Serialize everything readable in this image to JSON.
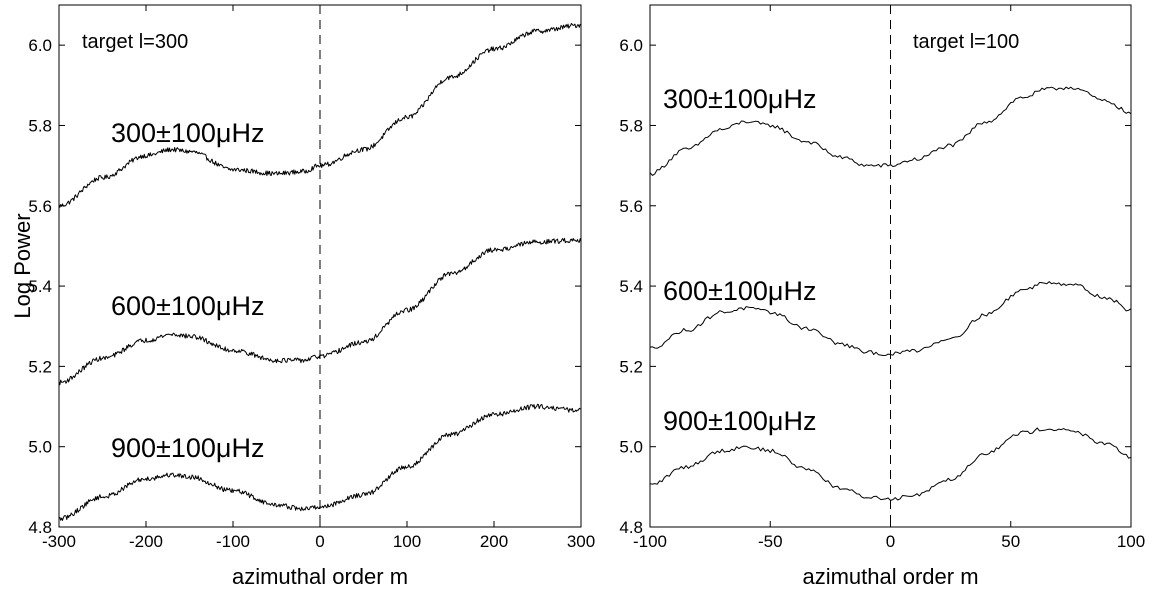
{
  "chart_data": [
    {
      "type": "line",
      "title": "target l=300",
      "xlabel": "azimuthal order m",
      "ylabel": "Log Power",
      "xlim": [
        -300,
        300
      ],
      "ylim": [
        4.8,
        6.1
      ],
      "xticks": [
        -300,
        -200,
        -100,
        0,
        100,
        200,
        300
      ],
      "yticks": [
        4.8,
        5.0,
        5.2,
        5.4,
        5.6,
        5.8,
        6.0
      ],
      "xtick_labels": [
        "-300",
        "-200",
        "-100",
        "0",
        "100",
        "200",
        "300"
      ],
      "ytick_labels": [
        "4.8",
        "5.0",
        "5.2",
        "5.4",
        "5.6",
        "5.8",
        "6.0"
      ],
      "reference_line": {
        "x": 0,
        "style": "dashed"
      },
      "series": [
        {
          "name": "300±100μHz",
          "x": [
            -300,
            -250,
            -200,
            -170,
            -150,
            -100,
            -50,
            -20,
            0,
            50,
            100,
            150,
            200,
            250,
            300
          ],
          "y": [
            5.6,
            5.67,
            5.725,
            5.74,
            5.735,
            5.69,
            5.68,
            5.685,
            5.7,
            5.74,
            5.82,
            5.92,
            5.99,
            6.035,
            6.05
          ]
        },
        {
          "name": "600±100μHz",
          "x": [
            -300,
            -250,
            -200,
            -170,
            -150,
            -100,
            -50,
            -20,
            0,
            50,
            100,
            150,
            200,
            250,
            300
          ],
          "y": [
            5.16,
            5.22,
            5.265,
            5.28,
            5.275,
            5.24,
            5.215,
            5.215,
            5.225,
            5.26,
            5.34,
            5.43,
            5.49,
            5.51,
            5.515
          ]
        },
        {
          "name": "900±100μHz",
          "x": [
            -300,
            -250,
            -200,
            -170,
            -150,
            -100,
            -50,
            -20,
            0,
            50,
            100,
            150,
            200,
            250,
            300
          ],
          "y": [
            4.82,
            4.875,
            4.92,
            4.93,
            4.925,
            4.89,
            4.855,
            4.845,
            4.85,
            4.88,
            4.95,
            5.03,
            5.08,
            5.1,
            5.09
          ]
        }
      ]
    },
    {
      "type": "line",
      "title": "target l=100",
      "xlabel": "azimuthal order m",
      "ylabel": "",
      "xlim": [
        -100,
        100
      ],
      "ylim": [
        4.8,
        6.1
      ],
      "xticks": [
        -100,
        -50,
        0,
        50,
        100
      ],
      "yticks": [
        4.8,
        5.0,
        5.2,
        5.4,
        5.6,
        5.8,
        6.0
      ],
      "xtick_labels": [
        "-100",
        "-50",
        "0",
        "50",
        "100"
      ],
      "ytick_labels": [
        "4.8",
        "5.0",
        "5.2",
        "5.4",
        "5.6",
        "5.8",
        "6.0"
      ],
      "reference_line": {
        "x": 0,
        "style": "dashed"
      },
      "series": [
        {
          "name": "300±100μHz",
          "x": [
            -100,
            -85,
            -70,
            -60,
            -50,
            -35,
            -20,
            -10,
            0,
            10,
            25,
            40,
            55,
            65,
            75,
            90,
            100
          ],
          "y": [
            5.68,
            5.74,
            5.79,
            5.81,
            5.8,
            5.76,
            5.72,
            5.7,
            5.7,
            5.715,
            5.75,
            5.81,
            5.87,
            5.89,
            5.895,
            5.86,
            5.83
          ]
        },
        {
          "name": "600±100μHz",
          "x": [
            -100,
            -85,
            -70,
            -60,
            -50,
            -35,
            -20,
            -10,
            0,
            10,
            25,
            40,
            55,
            65,
            75,
            90,
            100
          ],
          "y": [
            5.245,
            5.29,
            5.335,
            5.345,
            5.335,
            5.295,
            5.255,
            5.235,
            5.23,
            5.24,
            5.27,
            5.33,
            5.39,
            5.41,
            5.405,
            5.37,
            5.34
          ]
        },
        {
          "name": "900±100μHz",
          "x": [
            -100,
            -85,
            -70,
            -60,
            -50,
            -35,
            -20,
            -10,
            0,
            10,
            25,
            40,
            55,
            65,
            75,
            90,
            100
          ],
          "y": [
            4.905,
            4.95,
            4.99,
            5.0,
            4.99,
            4.945,
            4.895,
            4.875,
            4.87,
            4.88,
            4.92,
            4.985,
            5.035,
            5.045,
            5.04,
            5.005,
            4.975
          ]
        }
      ]
    }
  ]
}
